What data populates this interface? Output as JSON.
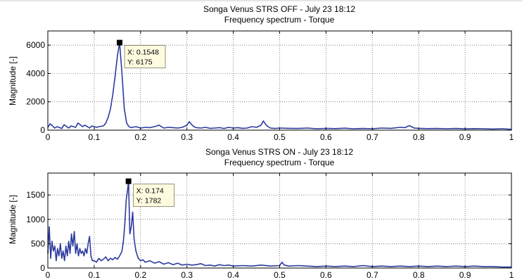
{
  "chart_data": [
    {
      "type": "line",
      "title": "Songa Venus  STRS OFF - July 23 18:12",
      "subtitle": "Frequency spectrum - Torque",
      "xlabel": "",
      "ylabel": "Magnitude [-]",
      "xlim": [
        0,
        1
      ],
      "ylim": [
        0,
        7000
      ],
      "xticks": [
        0,
        0.1,
        0.2,
        0.3,
        0.4,
        0.5,
        0.6,
        0.7,
        0.8,
        0.9,
        1
      ],
      "xtick_labels": [
        "0",
        "0.1",
        "0.2",
        "0.3",
        "0.4",
        "0.5",
        "0.6",
        "0.7",
        "0.8",
        "0.9",
        "1"
      ],
      "yticks": [
        0,
        2000,
        4000,
        6000
      ],
      "ytick_labels": [
        "0",
        "2000",
        "4000",
        "6000"
      ],
      "grid": true,
      "line_color": "#2b3a9e",
      "series": [
        {
          "x": [
            0,
            0.005,
            0.01,
            0.015,
            0.02,
            0.03,
            0.035,
            0.045,
            0.05,
            0.06,
            0.065,
            0.075,
            0.08,
            0.09,
            0.095,
            0.105,
            0.11,
            0.12,
            0.125,
            0.13,
            0.135,
            0.14,
            0.145,
            0.15,
            0.1548,
            0.16,
            0.165,
            0.17,
            0.175,
            0.18,
            0.19,
            0.2,
            0.21,
            0.22,
            0.23,
            0.24,
            0.25,
            0.26,
            0.27,
            0.28,
            0.29,
            0.3,
            0.305,
            0.31,
            0.315,
            0.32,
            0.33,
            0.34,
            0.35,
            0.36,
            0.37,
            0.38,
            0.39,
            0.4,
            0.41,
            0.42,
            0.43,
            0.44,
            0.45,
            0.46,
            0.465,
            0.47,
            0.475,
            0.48,
            0.49,
            0.5,
            0.52,
            0.54,
            0.56,
            0.58,
            0.6,
            0.62,
            0.64,
            0.66,
            0.68,
            0.7,
            0.72,
            0.74,
            0.76,
            0.77,
            0.78,
            0.79,
            0.8,
            0.82,
            0.84,
            0.86,
            0.88,
            0.9,
            0.92,
            0.94,
            0.96,
            0.98,
            1
          ],
          "y": [
            200,
            450,
            300,
            150,
            250,
            120,
            380,
            150,
            300,
            200,
            500,
            250,
            350,
            150,
            300,
            200,
            250,
            300,
            500,
            900,
            1500,
            2500,
            3800,
            5200,
            6175,
            4000,
            1500,
            500,
            250,
            180,
            250,
            150,
            200,
            180,
            250,
            350,
            150,
            200,
            180,
            150,
            200,
            350,
            600,
            400,
            250,
            180,
            150,
            200,
            130,
            150,
            180,
            120,
            200,
            150,
            180,
            130,
            150,
            250,
            200,
            350,
            650,
            400,
            250,
            150,
            120,
            150,
            130,
            120,
            150,
            100,
            130,
            110,
            140,
            100,
            120,
            100,
            150,
            130,
            200,
            180,
            320,
            150,
            130,
            110,
            120,
            100,
            120,
            90,
            110,
            100,
            80,
            100,
            60
          ]
        }
      ],
      "datatip": {
        "x_text": "X: 0.1548",
        "y_text": "Y: 6175",
        "x": 0.1548,
        "y": 6175
      }
    },
    {
      "type": "line",
      "title": "Songa Venus STRS ON - July 23 18:12",
      "subtitle": "Frequency spectrum - Torque",
      "xlabel": "",
      "ylabel": "Magnitude [-]",
      "xlim": [
        0,
        1
      ],
      "ylim": [
        0,
        1950
      ],
      "xticks": [
        0,
        0.1,
        0.2,
        0.3,
        0.4,
        0.5,
        0.6,
        0.7,
        0.8,
        0.9,
        1
      ],
      "xtick_labels": [
        "0",
        "0.1",
        "0.2",
        "0.3",
        "0.4",
        "0.5",
        "0.6",
        "0.7",
        "0.8",
        "0.9",
        "1"
      ],
      "yticks": [
        0,
        500,
        1000,
        1500
      ],
      "ytick_labels": [
        "0",
        "500",
        "1000",
        "1500"
      ],
      "grid": true,
      "line_color": "#2b3a9e",
      "series": [
        {
          "x": [
            0,
            0.003,
            0.006,
            0.009,
            0.012,
            0.015,
            0.018,
            0.021,
            0.024,
            0.027,
            0.03,
            0.033,
            0.036,
            0.039,
            0.042,
            0.045,
            0.048,
            0.051,
            0.054,
            0.057,
            0.06,
            0.063,
            0.066,
            0.069,
            0.072,
            0.075,
            0.078,
            0.081,
            0.084,
            0.087,
            0.09,
            0.093,
            0.096,
            0.1,
            0.105,
            0.11,
            0.115,
            0.12,
            0.125,
            0.13,
            0.135,
            0.14,
            0.145,
            0.15,
            0.155,
            0.16,
            0.163,
            0.166,
            0.169,
            0.172,
            0.174,
            0.177,
            0.18,
            0.183,
            0.186,
            0.19,
            0.195,
            0.2,
            0.205,
            0.21,
            0.22,
            0.23,
            0.24,
            0.25,
            0.26,
            0.27,
            0.28,
            0.29,
            0.3,
            0.31,
            0.32,
            0.33,
            0.34,
            0.35,
            0.36,
            0.37,
            0.38,
            0.39,
            0.4,
            0.42,
            0.44,
            0.46,
            0.48,
            0.5,
            0.505,
            0.51,
            0.52,
            0.54,
            0.56,
            0.58,
            0.6,
            0.62,
            0.64,
            0.66,
            0.68,
            0.7,
            0.72,
            0.74,
            0.76,
            0.78,
            0.8,
            0.82,
            0.84,
            0.86,
            0.88,
            0.9,
            0.92,
            0.94,
            0.96,
            0.98,
            1
          ],
          "y": [
            300,
            850,
            200,
            550,
            350,
            450,
            150,
            400,
            250,
            500,
            200,
            350,
            150,
            450,
            250,
            550,
            300,
            700,
            450,
            750,
            300,
            500,
            250,
            400,
            300,
            350,
            250,
            400,
            300,
            500,
            650,
            250,
            150,
            150,
            120,
            200,
            150,
            180,
            230,
            150,
            200,
            170,
            220,
            180,
            250,
            350,
            550,
            900,
            1400,
            1600,
            1782,
            700,
            850,
            1150,
            600,
            350,
            200,
            150,
            170,
            120,
            150,
            100,
            130,
            80,
            110,
            70,
            100,
            60,
            80,
            60,
            70,
            90,
            50,
            60,
            40,
            70,
            50,
            60,
            40,
            50,
            40,
            60,
            40,
            50,
            120,
            60,
            40,
            50,
            40,
            30,
            40,
            30,
            40,
            30,
            50,
            30,
            40,
            30,
            40,
            30,
            40,
            30,
            40,
            30,
            40,
            30,
            40,
            30,
            30,
            20,
            20
          ]
        }
      ],
      "datatip": {
        "x_text": "X: 0.174",
        "y_text": "Y: 1782",
        "x": 0.174,
        "y": 1782
      }
    }
  ]
}
